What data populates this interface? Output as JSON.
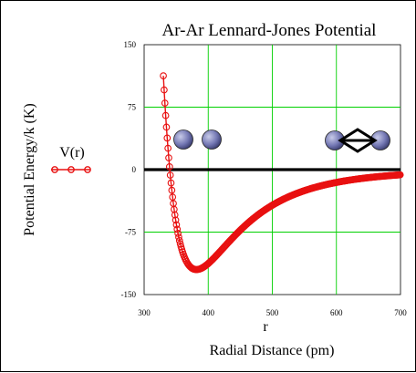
{
  "chart_data": {
    "type": "line",
    "title": "Ar-Ar Lennard-Jones Potential",
    "xlabel_var": "r",
    "xlabel": "Radial Distance (pm)",
    "ylabel": "Potential Energy/k (K)",
    "xlim": [
      300,
      700
    ],
    "ylim": [
      -150,
      150
    ],
    "x_ticks": [
      "300",
      "400",
      "500",
      "600",
      "700"
    ],
    "y_ticks": [
      "150",
      "75",
      "0",
      "-75",
      "-150"
    ],
    "x_tick_values": [
      300,
      400,
      500,
      600,
      700
    ],
    "y_tick_values": [
      150,
      75,
      0,
      -75,
      -150
    ],
    "grid": true,
    "grid_color": "#00d000",
    "legend_position": "left",
    "legend_label": "V(r)",
    "series": [
      {
        "name": "V(r)",
        "color": "#e81010",
        "lj_epsilon_k": 120,
        "lj_sigma_pm": 340,
        "x_start": 330,
        "x_end": 700,
        "x_step": 1.2
      }
    ]
  }
}
